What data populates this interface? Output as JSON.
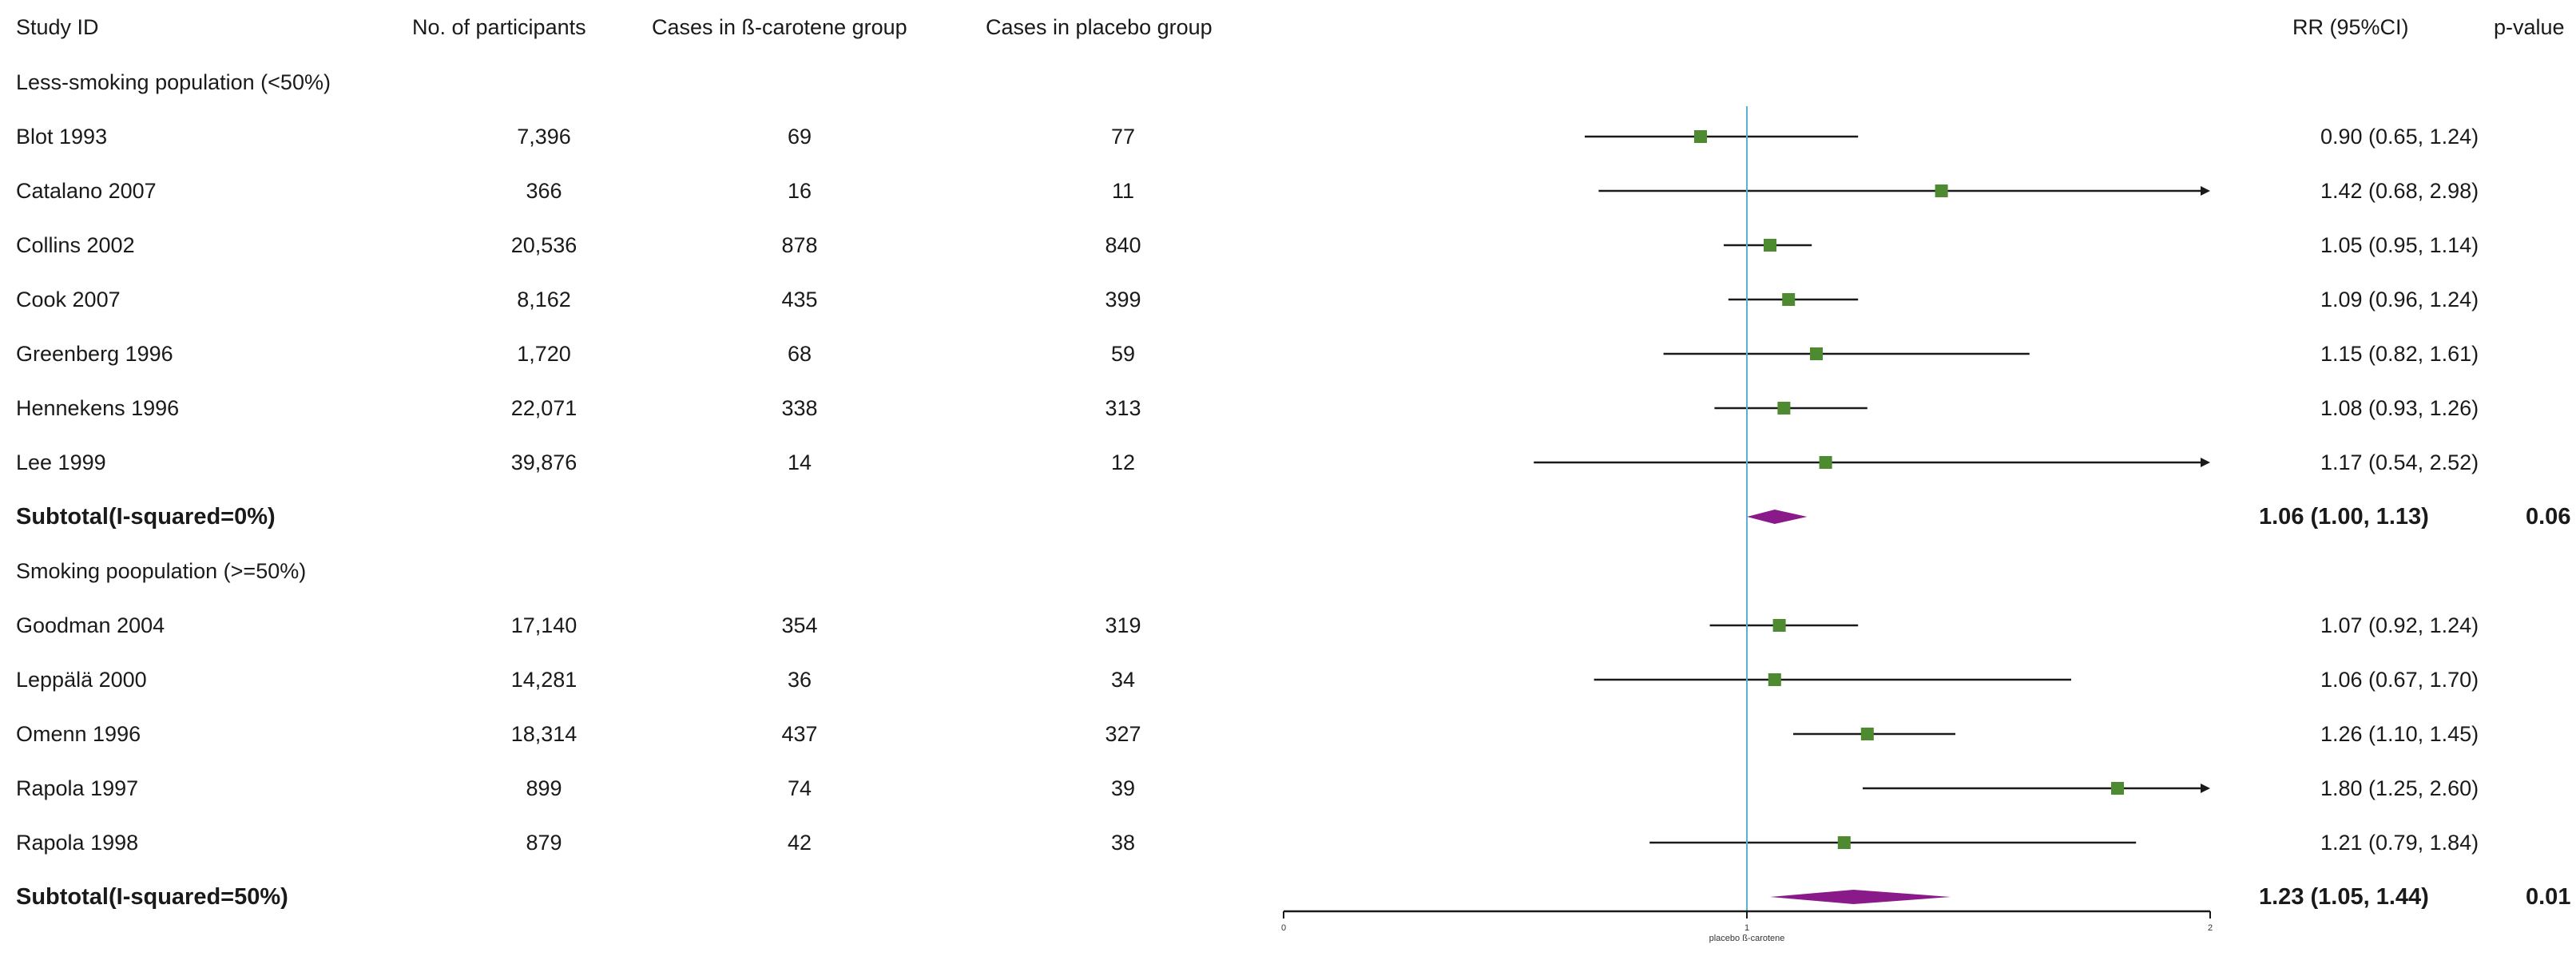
{
  "headers": {
    "study_id": "Study ID",
    "participants": "No. of participants",
    "beta_cases": "Cases in ß-carotene group",
    "placebo_cases": "Cases in placebo group",
    "rr": "RR (95%CI)",
    "p_value": "p-value"
  },
  "colors": {
    "marker": "#4e8a2f",
    "diamond": "#8a1a8a",
    "ref_line": "#5ab0cf",
    "ci_line": "#1a1a1a"
  },
  "chart_data": {
    "type": "forest",
    "xlim": [
      0,
      2
    ],
    "ticks": [
      {
        "value": 0,
        "label": "0"
      },
      {
        "value": 1,
        "label": "1"
      },
      {
        "value": 2,
        "label": "2"
      }
    ],
    "reference_line": 1,
    "xlabel": "placebo ß-carotene",
    "groups": [
      {
        "title": "Less-smoking population (<50%)",
        "studies": [
          {
            "id": "Blot 1993",
            "n": "7,396",
            "beta": "69",
            "placebo": "77",
            "rr": 0.9,
            "lo": 0.65,
            "hi": 1.24,
            "rr_text": "0.90 (0.65, 1.24)"
          },
          {
            "id": "Catalano 2007",
            "n": "366",
            "beta": "16",
            "placebo": "11",
            "rr": 1.42,
            "lo": 0.68,
            "hi": 2.98,
            "rr_text": "1.42 (0.68, 2.98)"
          },
          {
            "id": "Collins 2002",
            "n": "20,536",
            "beta": "878",
            "placebo": "840",
            "rr": 1.05,
            "lo": 0.95,
            "hi": 1.14,
            "rr_text": "1.05 (0.95, 1.14)"
          },
          {
            "id": "Cook 2007",
            "n": "8,162",
            "beta": "435",
            "placebo": "399",
            "rr": 1.09,
            "lo": 0.96,
            "hi": 1.24,
            "rr_text": "1.09 (0.96, 1.24)"
          },
          {
            "id": "Greenberg 1996",
            "n": "1,720",
            "beta": "68",
            "placebo": "59",
            "rr": 1.15,
            "lo": 0.82,
            "hi": 1.61,
            "rr_text": "1.15 (0.82, 1.61)"
          },
          {
            "id": "Hennekens 1996",
            "n": "22,071",
            "beta": "338",
            "placebo": "313",
            "rr": 1.08,
            "lo": 0.93,
            "hi": 1.26,
            "rr_text": "1.08 (0.93, 1.26)"
          },
          {
            "id": "Lee 1999",
            "n": "39,876",
            "beta": "14",
            "placebo": "12",
            "rr": 1.17,
            "lo": 0.54,
            "hi": 2.52,
            "rr_text": "1.17 (0.54, 2.52)"
          }
        ],
        "subtotal": {
          "label": "Subtotal(I-squared=0%)",
          "rr": 1.06,
          "lo": 1.0,
          "hi": 1.13,
          "rr_text": "1.06 (1.00, 1.13)",
          "p": "0.06"
        }
      },
      {
        "title": "Smoking poopulation (>=50%)",
        "studies": [
          {
            "id": "Goodman 2004",
            "n": "17,140",
            "beta": "354",
            "placebo": "319",
            "rr": 1.07,
            "lo": 0.92,
            "hi": 1.24,
            "rr_text": "1.07 (0.92, 1.24)"
          },
          {
            "id": "Leppälä 2000",
            "n": "14,281",
            "beta": "36",
            "placebo": "34",
            "rr": 1.06,
            "lo": 0.67,
            "hi": 1.7,
            "rr_text": "1.06 (0.67, 1.70)"
          },
          {
            "id": "Omenn 1996",
            "n": "18,314",
            "beta": "437",
            "placebo": "327",
            "rr": 1.26,
            "lo": 1.1,
            "hi": 1.45,
            "rr_text": "1.26 (1.10, 1.45)"
          },
          {
            "id": "Rapola 1997",
            "n": "899",
            "beta": "74",
            "placebo": "39",
            "rr": 1.8,
            "lo": 1.25,
            "hi": 2.6,
            "rr_text": "1.80 (1.25, 2.60)"
          },
          {
            "id": "Rapola 1998",
            "n": "879",
            "beta": "42",
            "placebo": "38",
            "rr": 1.21,
            "lo": 0.79,
            "hi": 1.84,
            "rr_text": "1.21 (0.79, 1.84)"
          }
        ],
        "subtotal": {
          "label": "Subtotal(I-squared=50%)",
          "rr": 1.23,
          "lo": 1.05,
          "hi": 1.44,
          "rr_text": "1.23 (1.05, 1.44)",
          "p": "0.01"
        }
      }
    ]
  }
}
